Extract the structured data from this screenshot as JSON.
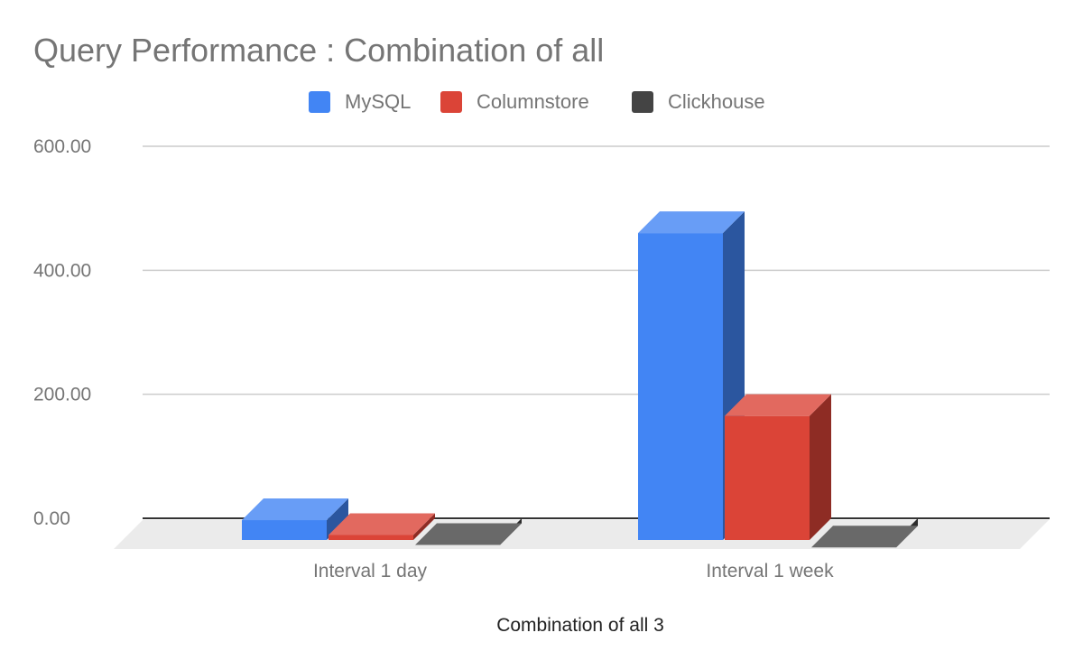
{
  "chart_data": {
    "type": "bar",
    "title": "Query Performance : Combination of all",
    "xlabel": "Combination of all 3",
    "ylabel": "",
    "categories": [
      "Interval 1 day",
      "Interval 1 week"
    ],
    "series": [
      {
        "name": "MySQL",
        "color": "#4285f4",
        "values": [
          32,
          495
        ]
      },
      {
        "name": "Columnstore",
        "color": "#db4437",
        "values": [
          8,
          200
        ]
      },
      {
        "name": "Clickhouse",
        "color": "#444444",
        "values": [
          -8,
          -12
        ]
      }
    ],
    "yticks": [
      "0.00",
      "200.00",
      "400.00",
      "600.00"
    ],
    "ylim": [
      0,
      600
    ],
    "grid": true,
    "legend_position": "top",
    "three_d": true
  }
}
